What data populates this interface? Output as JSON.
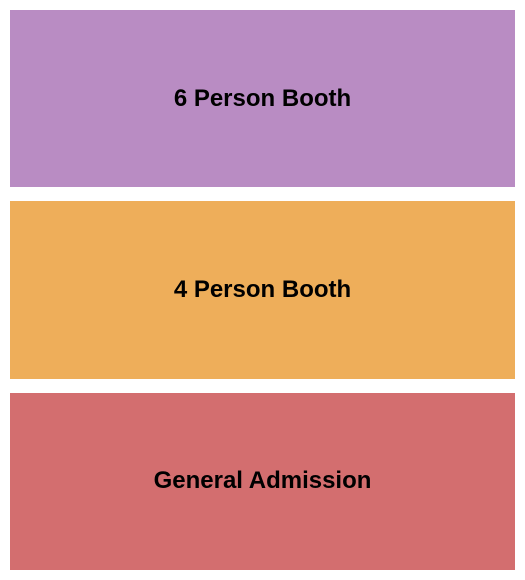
{
  "seating_chart": {
    "type": "infographic",
    "background_color": "#ffffff",
    "sections": [
      {
        "label": "6 Person Booth",
        "background_color": "#b98cc3",
        "font_size": 24,
        "font_weight": "bold",
        "text_color": "#000000"
      },
      {
        "label": "4 Person Booth",
        "background_color": "#eeae5a",
        "font_size": 24,
        "font_weight": "bold",
        "text_color": "#000000"
      },
      {
        "label": "General Admission",
        "background_color": "#d36e6f",
        "font_size": 24,
        "font_weight": "bold",
        "text_color": "#000000"
      }
    ],
    "gap": 14,
    "padding": 10
  }
}
